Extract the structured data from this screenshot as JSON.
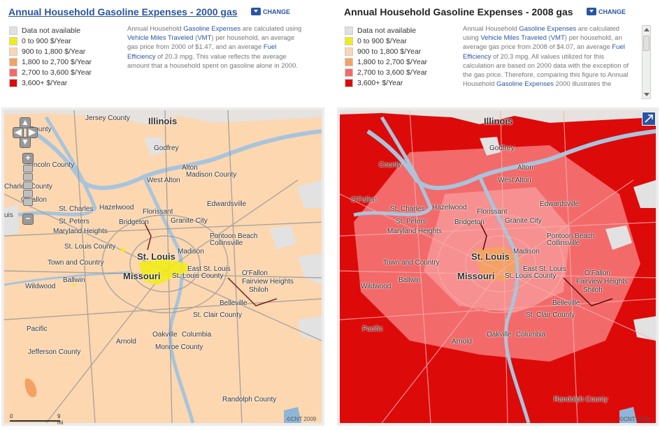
{
  "left": {
    "title": "Annual Household Gasoline Expenses - 2000 gas",
    "change": "CHANGE",
    "desc": {
      "p1": "Annual Household ",
      "l1": "Gasoline Expenses",
      "p2": " are calculated using ",
      "l2": "Vehicle Miles Traveled",
      "p3": " (",
      "l3": "VMT",
      "p4": ") per household, an average gas price from 2000 of $1.47, and an average ",
      "l4": "Fuel Efficiency",
      "p5": " of 20.3 mpg. This value reflects the average amount that a household spent on gasoline alone in 2000."
    }
  },
  "right": {
    "title": "Annual Household Gasoline Expenses - 2008 gas",
    "change": "CHANGE",
    "desc": {
      "p1": "Annual Household ",
      "l1": "Gasoline Expenses",
      "p2": " are calculated using ",
      "l2": "Vehicle Miles Traveled",
      "p3": " (",
      "l3": "VMT",
      "p4": ") per household, an average gas price from 2008 of $4.07, an average ",
      "l4": "Fuel Efficiency",
      "p5": " of 20.3 mpg. All values utilized for this calculation are based on 2000 data with the exception of the gas price. Therefore, comparing this figure to Annual Household ",
      "l5": "Gasoline Expenses",
      "p6": " 2000 illustrates the"
    }
  },
  "legend": [
    {
      "label": "Data not available",
      "color": "#e0e0e0"
    },
    {
      "label": "0 to 900 $/Year",
      "color": "#f2ec1a"
    },
    {
      "label": "900 to 1,800 $/Year",
      "color": "#fbd6b0"
    },
    {
      "label": "1,800 to 2,700 $/Year",
      "color": "#f4a264"
    },
    {
      "label": "2,700 to 3,600 $/Year",
      "color": "#f36a6a"
    },
    {
      "label": "3,600+ $/Year",
      "color": "#dd0a0a"
    }
  ],
  "places": {
    "illinois": "Illinois",
    "missouri": "Missouri",
    "stlouis": "St. Louis",
    "jersey": "Jersey County",
    "county1": "County",
    "lincoln": "Lincoln County",
    "charles": "Charles County",
    "ofallon1": "O'Fallon",
    "stcharles": "St. Charles",
    "hazelwood": "Hazelwood",
    "florissant": "Florissant",
    "edwardsville": "Edwardsville",
    "godfrey": "Godfrey",
    "alton": "Alton",
    "madisoncounty": "Madison County",
    "westalton": "West Alton",
    "stpeters": "St. Peters",
    "bridgeton": "Bridgeton",
    "granitecity": "Granite City",
    "maryland": "Maryland Heights",
    "pontoon": "Pontoon Beach",
    "collinsville": "Collinsville",
    "stlcounty": "St. Louis County",
    "madison": "Madison",
    "town": "Town and Country",
    "eaststlouis": "East St. Louis",
    "ofallon2": "O'Fallon",
    "fairview": "Fairview Heights",
    "shiloh": "Shiloh",
    "ballwin": "Ballwin",
    "wildwood": "Wildwood",
    "stlouiscounty2": "St. Louis County",
    "belleville": "Belleville",
    "stclair": "St. Clair County",
    "pacific": "Pacific",
    "arnold": "Arnold",
    "oakville": "Oakville",
    "columbia": "Columbia",
    "monroe": "Monroe County",
    "jefferson": "Jefferson County",
    "randolph": "Randolph County",
    "luis": "uis"
  },
  "scale": {
    "zero": "0",
    "nine": "9 mi"
  },
  "copyright": "©CNT 2009"
}
